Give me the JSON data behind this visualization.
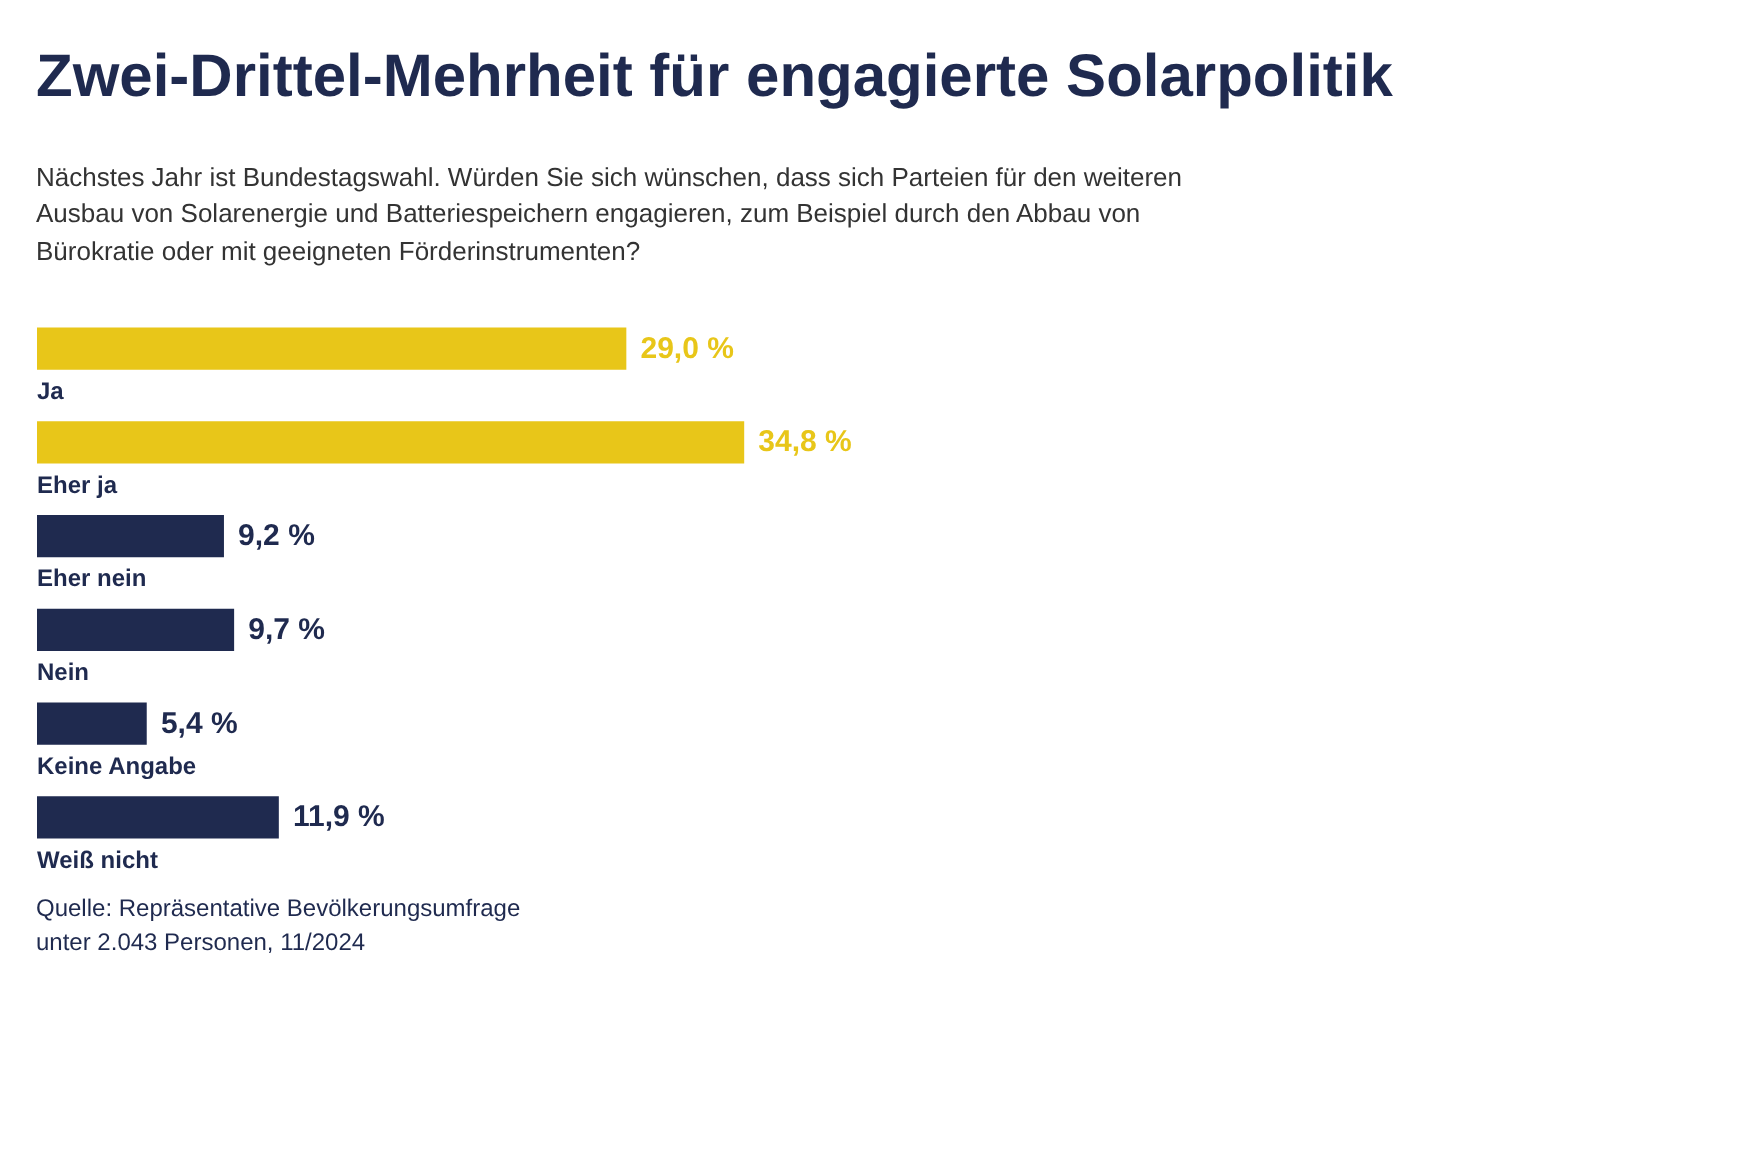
{
  "chart_data": {
    "type": "bar",
    "orientation": "horizontal",
    "title": "Zwei-Drittel-Mehrheit für engagierte Solarpolitik",
    "subtitle": "Nächstes Jahr ist Bundestagswahl. Würden Sie sich wünschen, dass sich Parteien für den weiteren Ausbau von Solarenergie und Batteriespeichern engagieren, zum Beispiel durch den Abbau von Bürokratie oder mit geeigneten Förderinstrumenten?",
    "categories": [
      "Ja",
      "Eher ja",
      "Eher nein",
      "Nein",
      "Keine Angabe",
      "Weiß nicht"
    ],
    "values": [
      29.0,
      34.8,
      9.2,
      9.7,
      5.4,
      11.9
    ],
    "colors": [
      "#e8c619",
      "#e8c619",
      "#1f2a4f",
      "#1f2a4f",
      "#1f2a4f",
      "#1f2a4f"
    ],
    "value_labels": [
      "29,0 %",
      "34,8 %",
      "9,2 %",
      "9,7 %",
      "5,4 %",
      "11,9 %"
    ],
    "grid": false,
    "annotations": [
      "Quelle: Repräsentative Bevölkerungsumfrage unter 2.043 Personen, 11/2024"
    ]
  }
}
